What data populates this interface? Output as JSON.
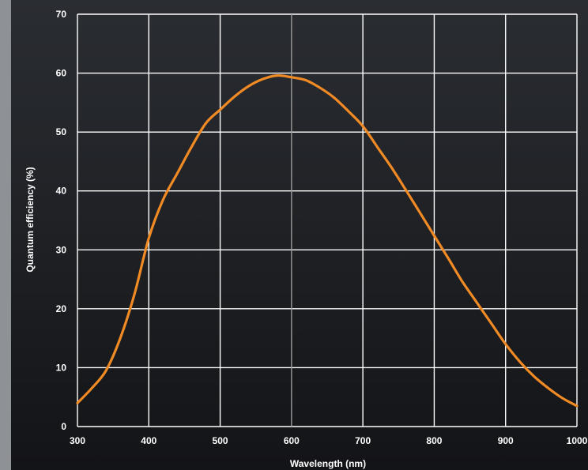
{
  "chart_data": {
    "type": "line",
    "title": "",
    "xlabel": "Wavelength (nm)",
    "ylabel": "Quantum efficiency (%)",
    "xlim": [
      300,
      1000
    ],
    "ylim": [
      0,
      70
    ],
    "x_ticks": [
      300,
      400,
      500,
      600,
      700,
      800,
      900,
      1000
    ],
    "y_ticks": [
      0,
      10,
      20,
      30,
      40,
      50,
      60,
      70
    ],
    "x_tick_labels": [
      "300",
      "400",
      "500",
      "600",
      "700",
      "800",
      "900",
      "1000"
    ],
    "y_tick_labels": [
      "0",
      "10",
      "20",
      "30",
      "40",
      "50",
      "60",
      "70"
    ],
    "highlighted_x_gridline": 600,
    "grid": true,
    "legend": "none",
    "series": [
      {
        "color": "#f08a24",
        "x": [
          300,
          320,
          340,
          360,
          380,
          400,
          420,
          440,
          460,
          480,
          500,
          520,
          540,
          560,
          580,
          600,
          620,
          640,
          660,
          680,
          700,
          720,
          740,
          760,
          780,
          800,
          820,
          840,
          860,
          880,
          900,
          920,
          940,
          960,
          980,
          1000
        ],
        "y": [
          4,
          6.5,
          9.5,
          15,
          22.5,
          32,
          38.5,
          43,
          47.5,
          51.5,
          53.8,
          56,
          57.8,
          59,
          59.6,
          59.3,
          58.8,
          57.5,
          55.8,
          53.5,
          51,
          47.5,
          44,
          40.2,
          36.3,
          32.4,
          28.5,
          24.5,
          21,
          17.5,
          14,
          11,
          8.5,
          6.5,
          4.8,
          3.5
        ]
      }
    ],
    "colors": {
      "background_top": "#2a2d32",
      "background_bottom": "#131417",
      "left_band": "#8e9196",
      "grid": "#ffffff",
      "highlight_grid": "#9a9a9a",
      "line": "#f08a24",
      "text": "#ffffff"
    }
  }
}
